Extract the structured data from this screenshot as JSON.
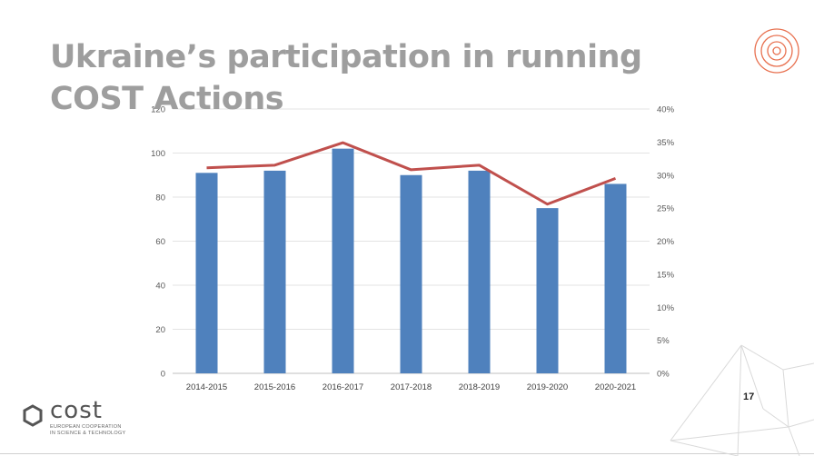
{
  "slide": {
    "title": "Ukraine’s participation in running COST Actions",
    "page_number": "17"
  },
  "logo": {
    "word": "cost",
    "line1": "EUROPEAN COOPERATION",
    "line2": "IN SCIENCE & TECHNOLOGY"
  },
  "colors": {
    "bar": "#4f81bd",
    "line": "#c0504d",
    "accent": "#e8704f",
    "title": "#9e9e9e"
  },
  "chart_data": {
    "type": "bar",
    "categories": [
      "2014-2015",
      "2015-2016",
      "2016-2017",
      "2017-2018",
      "2018-2019",
      "2019-2020",
      "2020-2021"
    ],
    "series": [
      {
        "type": "bar",
        "axis": "left",
        "values": [
          91,
          92,
          102,
          90,
          92,
          75,
          86
        ]
      },
      {
        "type": "line",
        "axis": "right",
        "values": [
          0.311,
          0.315,
          0.349,
          0.308,
          0.315,
          0.256,
          0.295
        ]
      }
    ],
    "y_left": {
      "min": 0,
      "max": 120,
      "ticks": [
        "0",
        "20",
        "40",
        "60",
        "80",
        "100",
        "120"
      ]
    },
    "y_right": {
      "min": 0,
      "max": 0.4,
      "ticks": [
        "0%",
        "5%",
        "10%",
        "15%",
        "20%",
        "25%",
        "30%",
        "35%",
        "40%"
      ]
    },
    "grid": true,
    "legend": "none"
  }
}
